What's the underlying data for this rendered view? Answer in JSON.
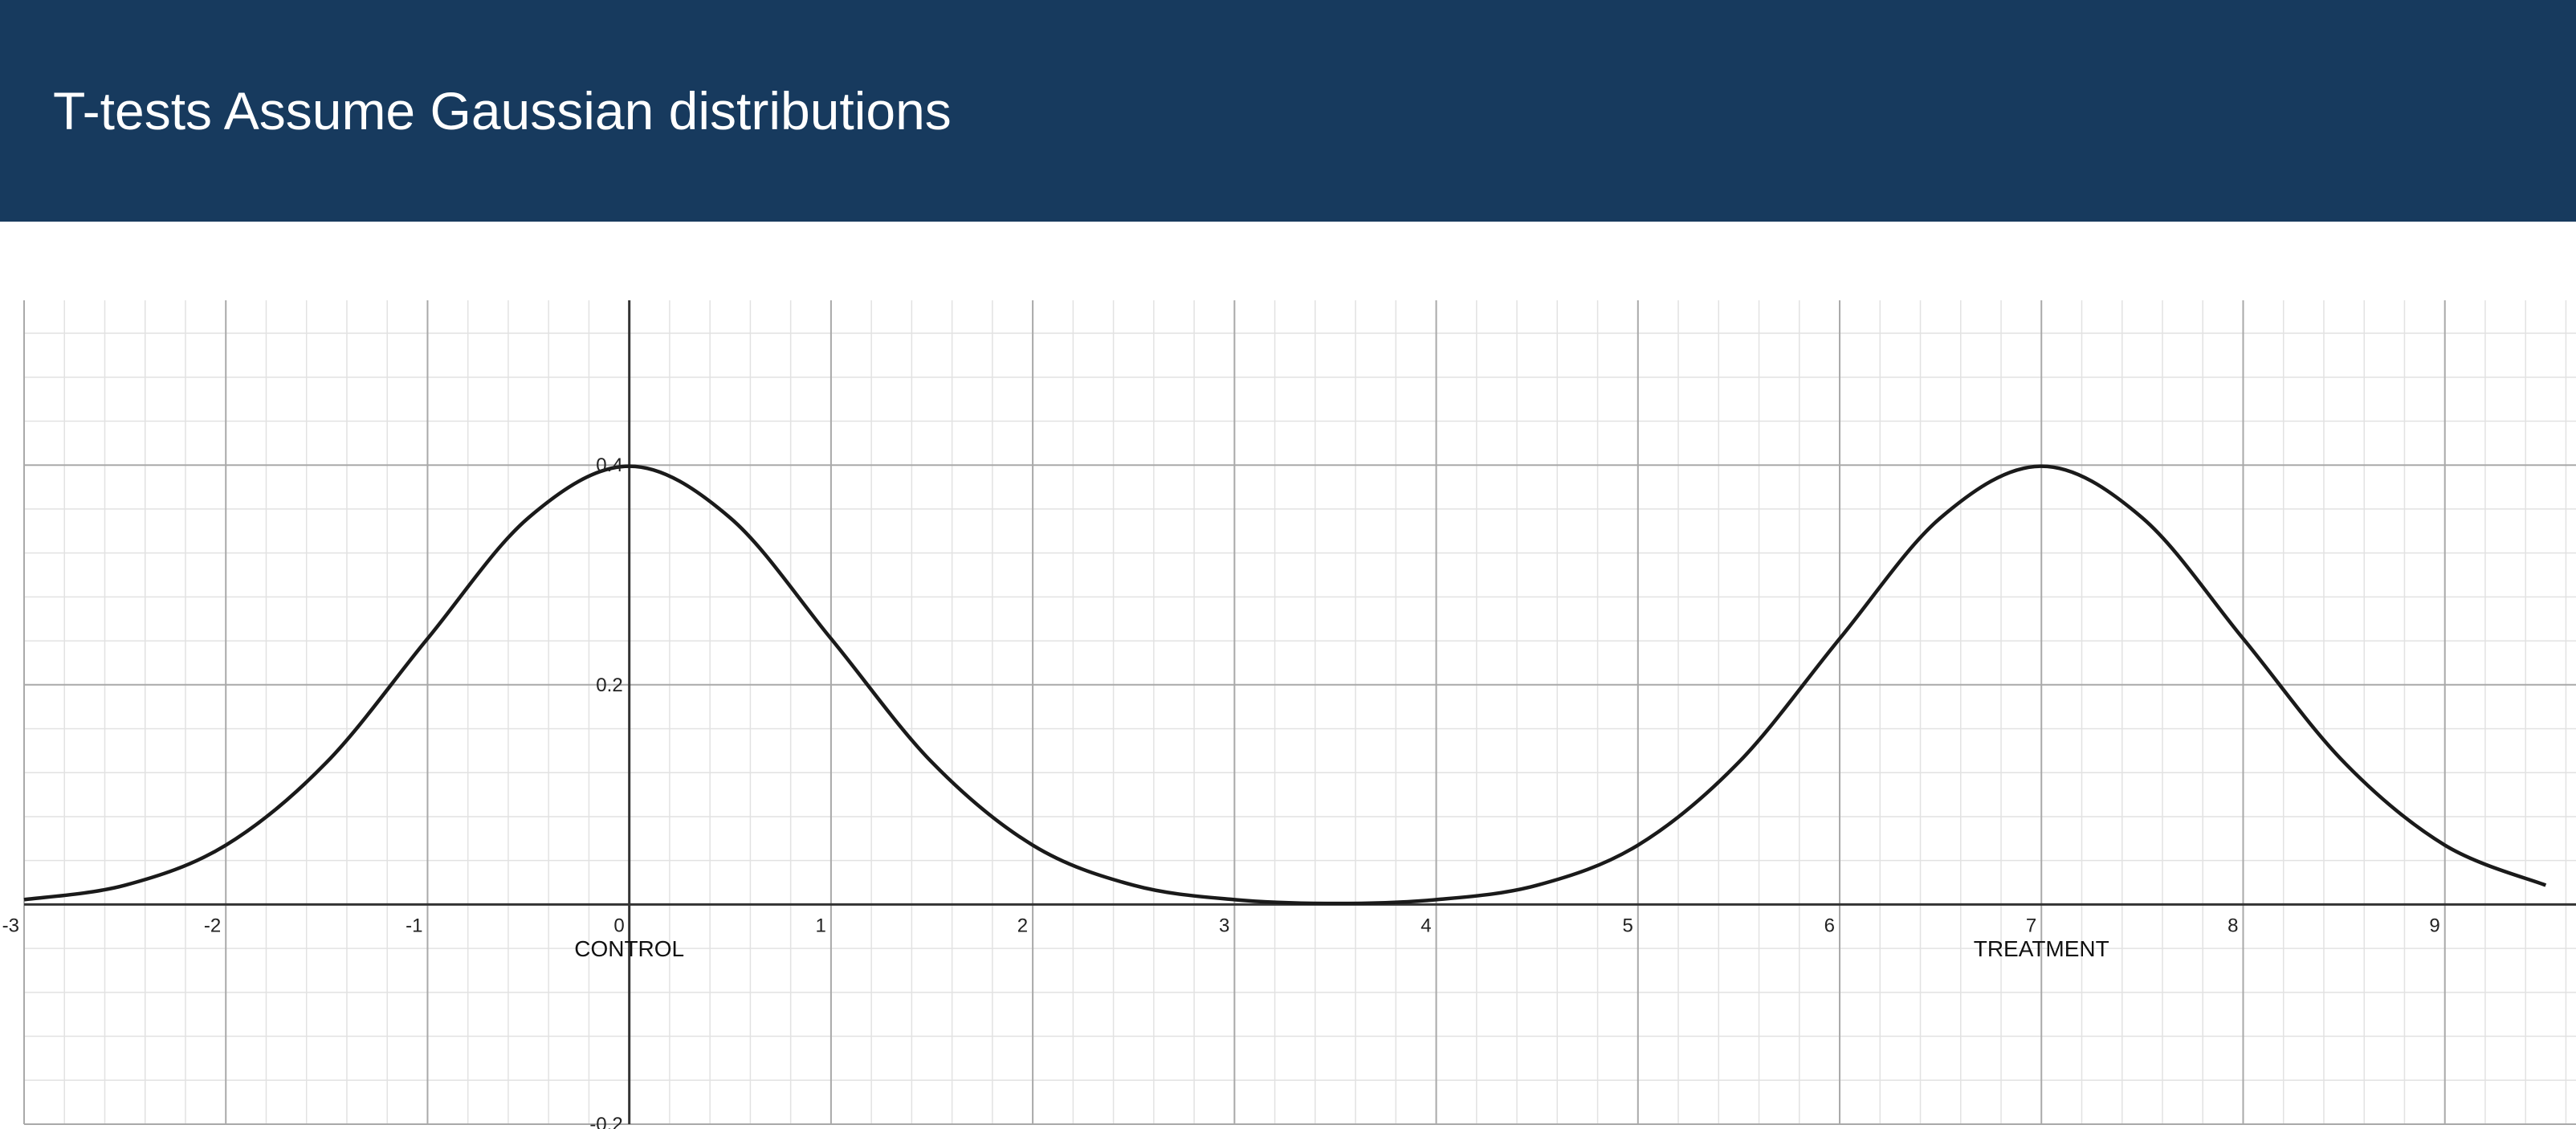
{
  "slide": {
    "title": "T-tests Assume Gaussian distributions"
  },
  "chart_data": {
    "type": "line",
    "title": "",
    "xlabel": "",
    "ylabel": "",
    "xlim": [
      -3,
      9.65
    ],
    "ylim": [
      -0.2,
      0.55
    ],
    "grid": true,
    "x_ticks": [
      -3,
      -2,
      -1,
      0,
      1,
      2,
      3,
      4,
      5,
      6,
      7,
      8,
      9
    ],
    "y_ticks": [
      -0.2,
      0.2,
      0.4
    ],
    "x_tick_labels": [
      "-3",
      "-2",
      "-1",
      "0",
      "1",
      "2",
      "3",
      "4",
      "5",
      "6",
      "7",
      "8",
      "9"
    ],
    "y_tick_labels": [
      "-0.2",
      "0.2",
      "0.4"
    ],
    "series": [
      {
        "color": "#1a1a1a",
        "x": [
          -3,
          -2.5,
          -2,
          -1.5,
          -1,
          -0.5,
          0,
          0.5,
          1,
          1.5,
          2,
          2.5,
          3,
          3.5,
          4,
          4.5,
          5,
          5.5,
          6,
          6.5,
          7,
          7.5,
          8,
          8.5,
          9,
          9.5
        ],
        "y": [
          0.0044,
          0.0175,
          0.054,
          0.1295,
          0.242,
          0.352,
          0.399,
          0.352,
          0.242,
          0.1295,
          0.054,
          0.0175,
          0.0044,
          0.0009,
          0.0044,
          0.0175,
          0.054,
          0.1295,
          0.242,
          0.352,
          0.399,
          0.352,
          0.242,
          0.1295,
          0.054,
          0.0175
        ]
      }
    ],
    "annotations": [
      {
        "text": "CONTROL",
        "x": 0,
        "y": -0.04
      },
      {
        "text": "TREATMENT",
        "x": 7,
        "y": -0.04
      }
    ],
    "colors": {
      "header_bg": "#173a5e",
      "grid_major": "#a9a9a9",
      "grid_minor": "#e2e2e2",
      "axis": "#333333"
    }
  }
}
